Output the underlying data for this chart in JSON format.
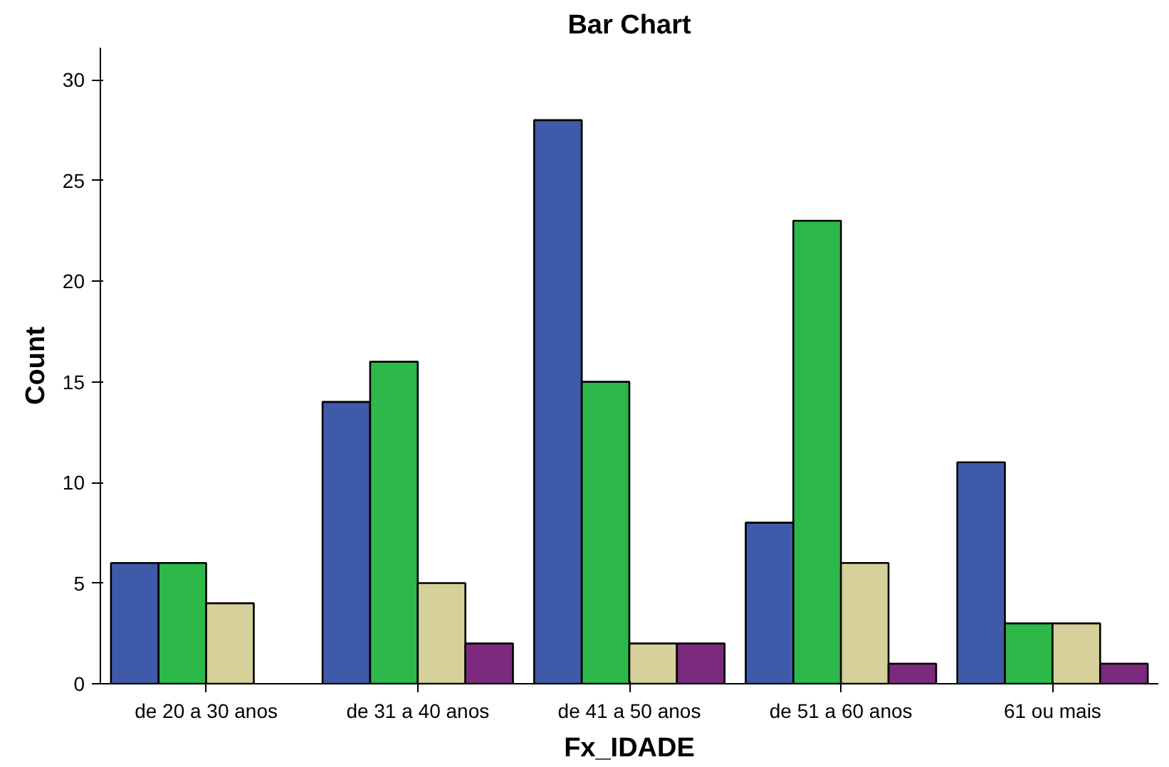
{
  "chart_data": {
    "type": "bar",
    "title": "Bar Chart",
    "xlabel": "Fx_IDADE",
    "ylabel": "Count",
    "categories": [
      "de 20 a 30 anos",
      "de 31 a 40 anos",
      "de 41 a 50 anos",
      "de 51 a 60 anos",
      "61 ou mais"
    ],
    "series": [
      {
        "color": "#3f5aa8",
        "values": [
          6,
          14,
          28,
          8,
          11
        ]
      },
      {
        "color": "#2db84a",
        "values": [
          6,
          16,
          15,
          23,
          3
        ]
      },
      {
        "color": "#d6d09a",
        "values": [
          4,
          5,
          2,
          6,
          3
        ]
      },
      {
        "color": "#7b2a7e",
        "values": [
          null,
          2,
          2,
          1,
          1
        ]
      }
    ],
    "ylim": [
      0,
      31.6
    ],
    "yticks": [
      0,
      5,
      10,
      15,
      20,
      25,
      30
    ],
    "grid": false
  }
}
